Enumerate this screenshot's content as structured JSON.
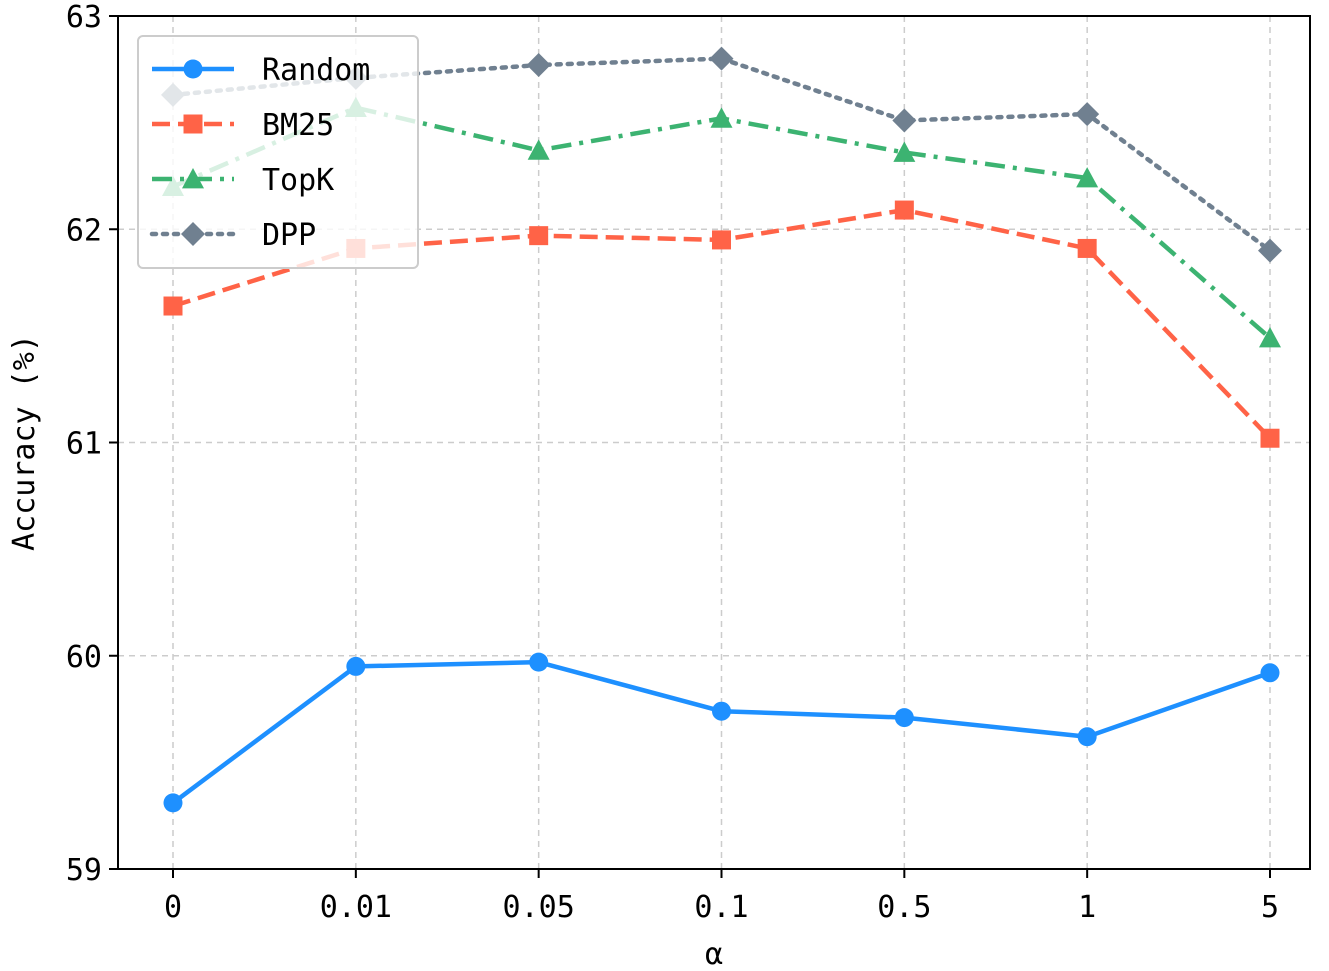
{
  "chart_data": {
    "type": "line",
    "title": "",
    "xlabel": "α",
    "ylabel": "Accuracy (%)",
    "categories": [
      "0",
      "0.01",
      "0.05",
      "0.1",
      "0.5",
      "1",
      "5"
    ],
    "ylim": [
      59,
      63
    ],
    "yticks": [
      "59",
      "60",
      "61",
      "62",
      "63"
    ],
    "grid": true,
    "legend_position": "top-left",
    "series": [
      {
        "name": "Random",
        "color": "#1E90FF",
        "marker": "circle",
        "linestyle": "solid",
        "values": [
          59.31,
          59.95,
          59.97,
          59.74,
          59.71,
          59.62,
          59.92
        ]
      },
      {
        "name": "BM25",
        "color": "#FF6347",
        "marker": "square",
        "linestyle": "dashed",
        "values": [
          61.64,
          61.91,
          61.97,
          61.95,
          62.09,
          61.91,
          61.02
        ]
      },
      {
        "name": "TopK",
        "color": "#3CB371",
        "marker": "triangle",
        "linestyle": "dashdot",
        "values": [
          62.2,
          62.57,
          62.37,
          62.52,
          62.36,
          62.24,
          61.49
        ]
      },
      {
        "name": "DPP",
        "color": "#708090",
        "marker": "diamond",
        "linestyle": "dotted",
        "values": [
          62.63,
          62.71,
          62.77,
          62.8,
          62.51,
          62.54,
          61.9
        ]
      }
    ]
  }
}
